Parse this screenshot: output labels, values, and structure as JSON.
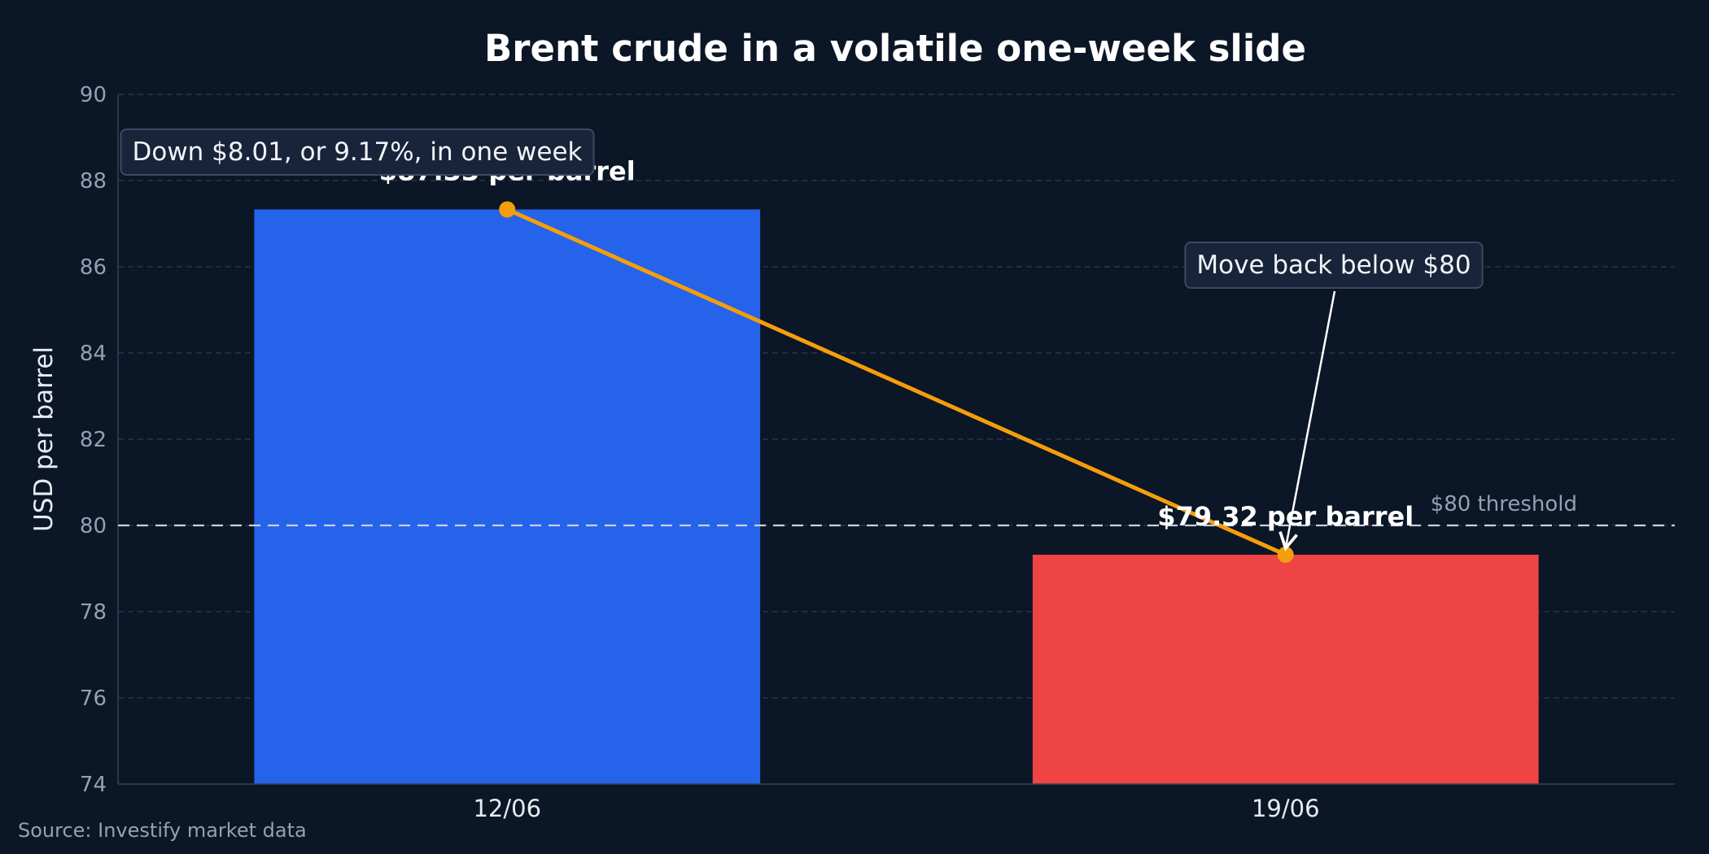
{
  "chart_data": {
    "type": "bar",
    "title": "Brent crude in a volatile one-week slide",
    "ylabel": "USD per barrel",
    "xlabel": "",
    "categories": [
      "12/06",
      "19/06"
    ],
    "values": [
      87.33,
      79.32
    ],
    "bar_colors": [
      "#2563eb",
      "#ef4444"
    ],
    "line_color": "#f59e0b",
    "ylim": [
      74,
      90
    ],
    "yticks": [
      74,
      76,
      78,
      80,
      82,
      84,
      86,
      88,
      90
    ],
    "grid": true,
    "value_labels": [
      "$87.33 per barrel",
      "$79.32 per barrel"
    ],
    "threshold": {
      "value": 80,
      "label": "$80 threshold"
    },
    "annotations": [
      {
        "text": "Down $8.01, or 9.17%, in one week"
      },
      {
        "text": "Move back below $80"
      }
    ],
    "source": "Source: Investify market data"
  }
}
